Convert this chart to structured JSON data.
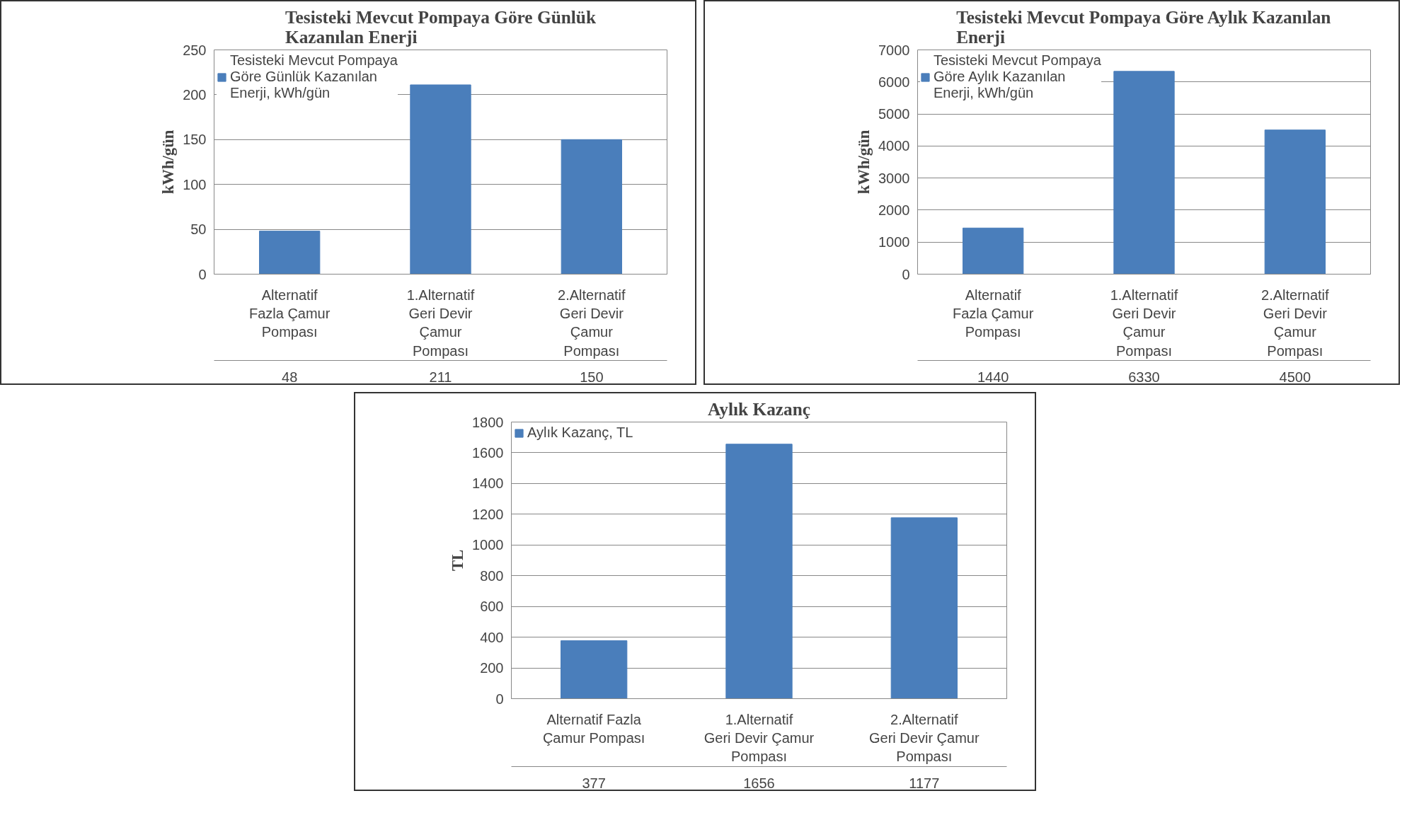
{
  "chart_data": [
    {
      "type": "bar",
      "title": "Tesisteki Mevcut Pompaya Göre Günlük Kazanılan Enerji",
      "ylabel": "kWh/gün",
      "categories": [
        "Alternatif Fazla Çamur Pompası",
        "1.Alternatif Geri Devir Çamur Pompası",
        "2.Alternatif Geri Devir Çamur Pompası"
      ],
      "series": [
        {
          "name": "Tesisteki Mevcut Pompaya Göre Günlük Kazanılan Enerji, kWh/gün",
          "color": "#4a7ebb",
          "values": [
            48,
            211,
            150
          ]
        }
      ],
      "ylim": [
        0,
        250
      ],
      "yticks": [
        0,
        50,
        100,
        150,
        200,
        250
      ],
      "grid": "y",
      "legend": "top left",
      "data_labels": true
    },
    {
      "type": "bar",
      "title": "Tesisteki Mevcut Pompaya Göre Aylık Kazanılan Enerji",
      "ylabel": "kWh/gün",
      "categories": [
        "Alternatif Fazla Çamur Pompası",
        "1.Alternatif Geri Devir Çamur Pompası",
        "2.Alternatif Geri Devir Çamur Pompası"
      ],
      "series": [
        {
          "name": "Tesisteki Mevcut Pompaya Göre Aylık Kazanılan Enerji, kWh/gün",
          "color": "#4a7ebb",
          "values": [
            1440,
            6330,
            4500
          ]
        }
      ],
      "ylim": [
        0,
        7000
      ],
      "yticks": [
        0,
        1000,
        2000,
        3000,
        4000,
        5000,
        6000,
        7000
      ],
      "grid": "y",
      "legend": "top left",
      "data_labels": true
    },
    {
      "type": "bar",
      "title": "Aylık Kazanç",
      "ylabel": "TL",
      "categories": [
        "Alternatif Fazla Çamur Pompası",
        "1.Alternatif Geri Devir Çamur Pompası",
        "2.Alternatif Geri Devir Çamur Pompası"
      ],
      "series": [
        {
          "name": "Aylık Kazanç, TL",
          "color": "#4a7ebb",
          "values": [
            377,
            1656,
            1177
          ]
        }
      ],
      "ylim": [
        0,
        1800
      ],
      "yticks": [
        0,
        200,
        400,
        600,
        800,
        1000,
        1200,
        1400,
        1600,
        1800
      ],
      "grid": "y",
      "legend": "top left",
      "data_labels": true
    }
  ]
}
